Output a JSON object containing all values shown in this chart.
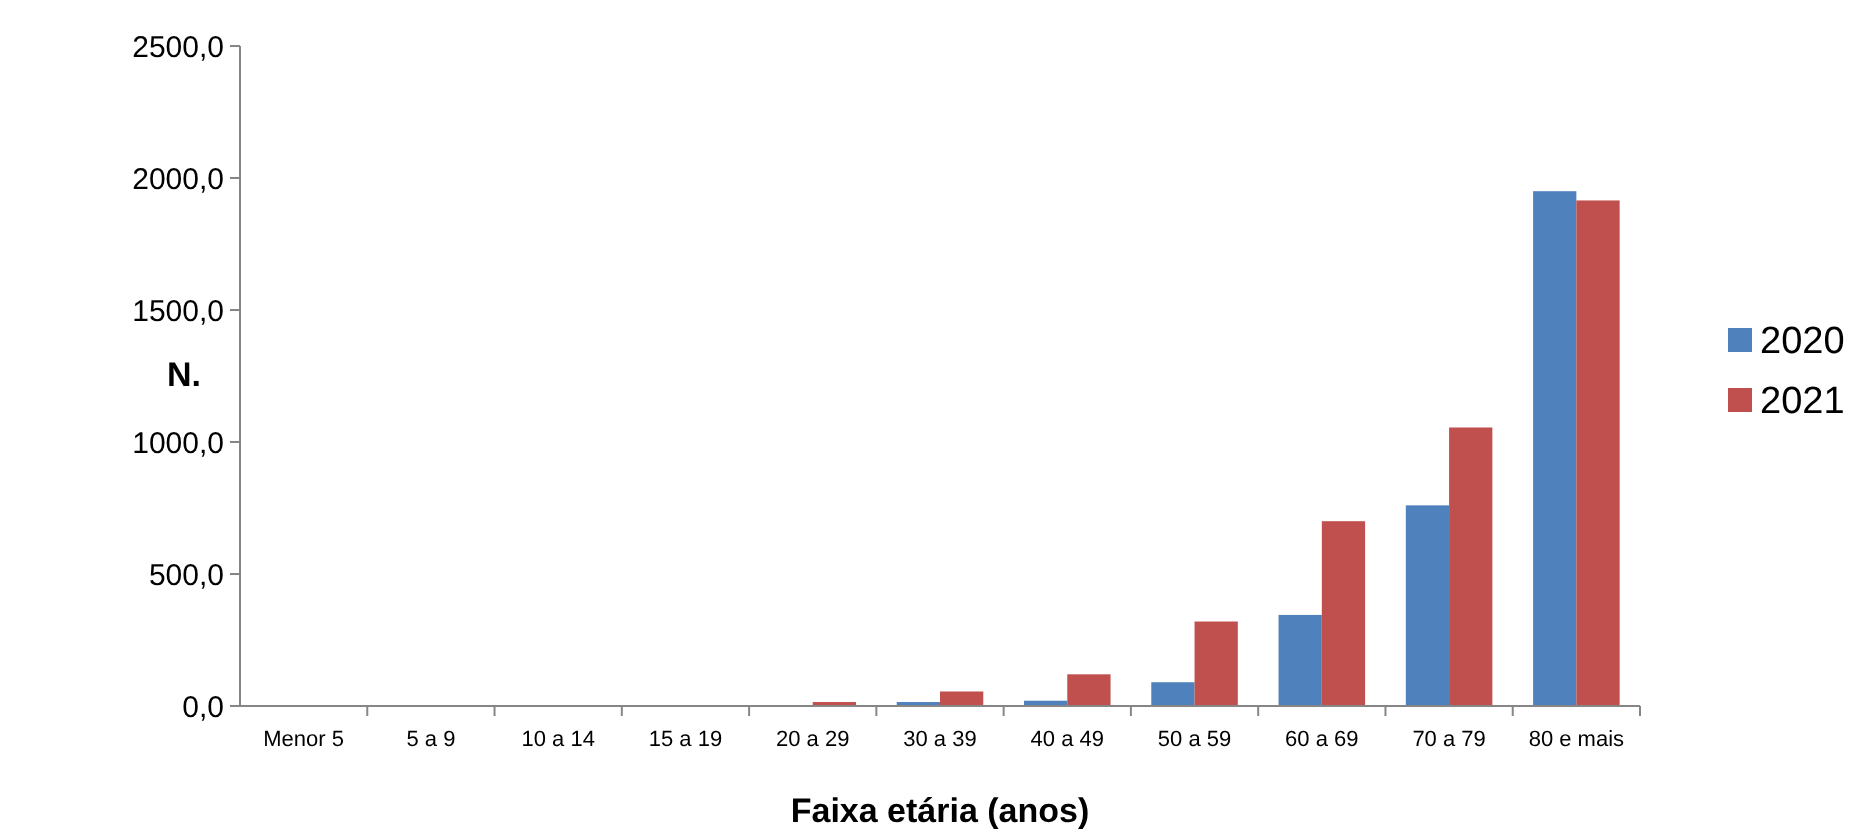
{
  "chart_data": {
    "type": "bar",
    "xlabel": "Faixa etária (anos)",
    "ylabel": "N.",
    "categories": [
      "Menor 5",
      "5 a 9",
      "10 a 14",
      "15 a 19",
      "20 a 29",
      "30 a 39",
      "40 a 49",
      "50 a 59",
      "60 a 69",
      "70 a 79",
      "80 e mais"
    ],
    "series": [
      {
        "name": "2020",
        "color": "#4f81bd",
        "values": [
          0,
          0,
          0,
          0,
          2,
          15,
          20,
          90,
          345,
          760,
          1950
        ]
      },
      {
        "name": "2021",
        "color": "#c0504d",
        "values": [
          3,
          0,
          0,
          0,
          15,
          55,
          120,
          320,
          700,
          1055,
          1915
        ]
      }
    ],
    "ylim": [
      0,
      2500
    ],
    "yticks": [
      {
        "value": 0,
        "label": "0,0"
      },
      {
        "value": 500,
        "label": "500,0"
      },
      {
        "value": 1000,
        "label": "1000,0"
      },
      {
        "value": 1500,
        "label": "1500,0"
      },
      {
        "value": 2000,
        "label": "2000,0"
      },
      {
        "value": 2500,
        "label": "2500,0"
      }
    ],
    "grid": false,
    "legend": "right"
  }
}
